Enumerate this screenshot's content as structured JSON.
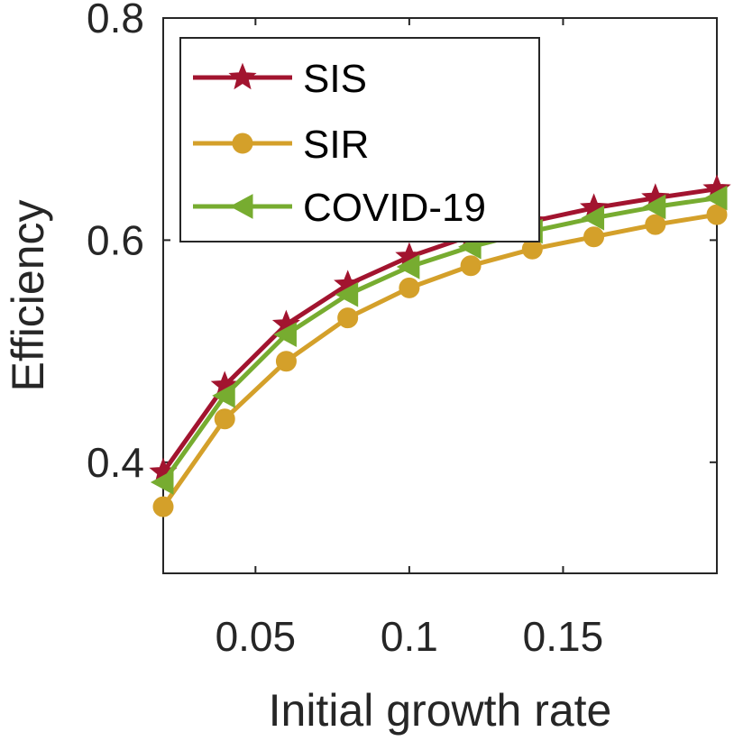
{
  "chart_data": {
    "type": "line",
    "title": "",
    "xlabel": "Initial growth rate",
    "ylabel": "Efficiency",
    "xlim": [
      0.02,
      0.2
    ],
    "ylim": [
      0.3,
      0.8
    ],
    "xticks": [
      0.05,
      0.1,
      0.15
    ],
    "xtick_labels": [
      "0.05",
      "0.1",
      "0.15"
    ],
    "yticks": [
      0.4,
      0.6,
      0.8
    ],
    "ytick_labels": [
      "0.4",
      "0.6",
      "0.8"
    ],
    "grid": false,
    "legend_position": "top-left",
    "x": [
      0.02,
      0.04,
      0.06,
      0.08,
      0.1,
      0.12,
      0.14,
      0.16,
      0.18,
      0.2
    ],
    "series": [
      {
        "name": "SIS",
        "marker": "star",
        "color": "#A2142F",
        "values": [
          0.391,
          0.469,
          0.524,
          0.56,
          0.585,
          0.604,
          0.617,
          0.629,
          0.638,
          0.646
        ]
      },
      {
        "name": "SIR",
        "marker": "circle",
        "color": "#D4A02A",
        "values": [
          0.36,
          0.439,
          0.491,
          0.53,
          0.557,
          0.577,
          0.592,
          0.603,
          0.614,
          0.623
        ]
      },
      {
        "name": "COVID-19",
        "marker": "triangle-left",
        "color": "#77AC30",
        "values": [
          0.382,
          0.46,
          0.515,
          0.551,
          0.576,
          0.594,
          0.608,
          0.62,
          0.63,
          0.638
        ]
      }
    ]
  }
}
